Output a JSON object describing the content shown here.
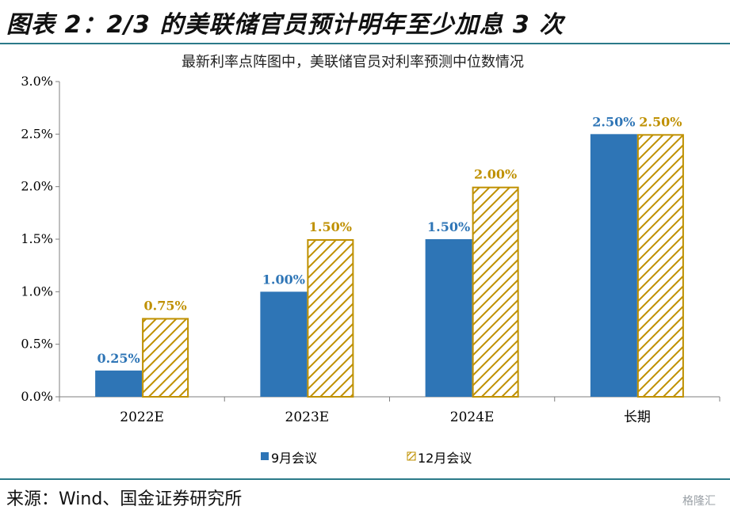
{
  "header": {
    "title": "图表 2：2/3 的美联储官员预计明年至少加息 3 次"
  },
  "footer": {
    "source": "来源：Wind、国金证券研究所"
  },
  "watermark": {
    "text": "格隆汇"
  },
  "colors": {
    "series1": "#2e75b6",
    "series2": "#bf9000",
    "rule": "#2b7a89"
  },
  "chart_data": {
    "type": "bar",
    "title": "最新利率点阵图中，美联储官员对利率预测中位数情况",
    "categories": [
      "2022E",
      "2023E",
      "2024E",
      "长期"
    ],
    "series": [
      {
        "name": "9月会议",
        "values": [
          0.25,
          1.0,
          1.5,
          2.5
        ],
        "labels": [
          "0.25%",
          "1.00%",
          "1.50%",
          "2.50%"
        ],
        "pattern": "solid"
      },
      {
        "name": "12月会议",
        "values": [
          0.75,
          1.5,
          2.0,
          2.5
        ],
        "labels": [
          "0.75%",
          "1.50%",
          "2.00%",
          "2.50%"
        ],
        "pattern": "diagonal-hatch"
      }
    ],
    "ylim": [
      0,
      3.0
    ],
    "yticks": [
      "0.0%",
      "0.5%",
      "1.0%",
      "1.5%",
      "2.0%",
      "2.5%",
      "3.0%"
    ],
    "ytick_values": [
      0,
      0.5,
      1.0,
      1.5,
      2.0,
      2.5,
      3.0
    ],
    "xlabel": "",
    "ylabel": "",
    "grid": false,
    "legend_position": "bottom-center"
  }
}
